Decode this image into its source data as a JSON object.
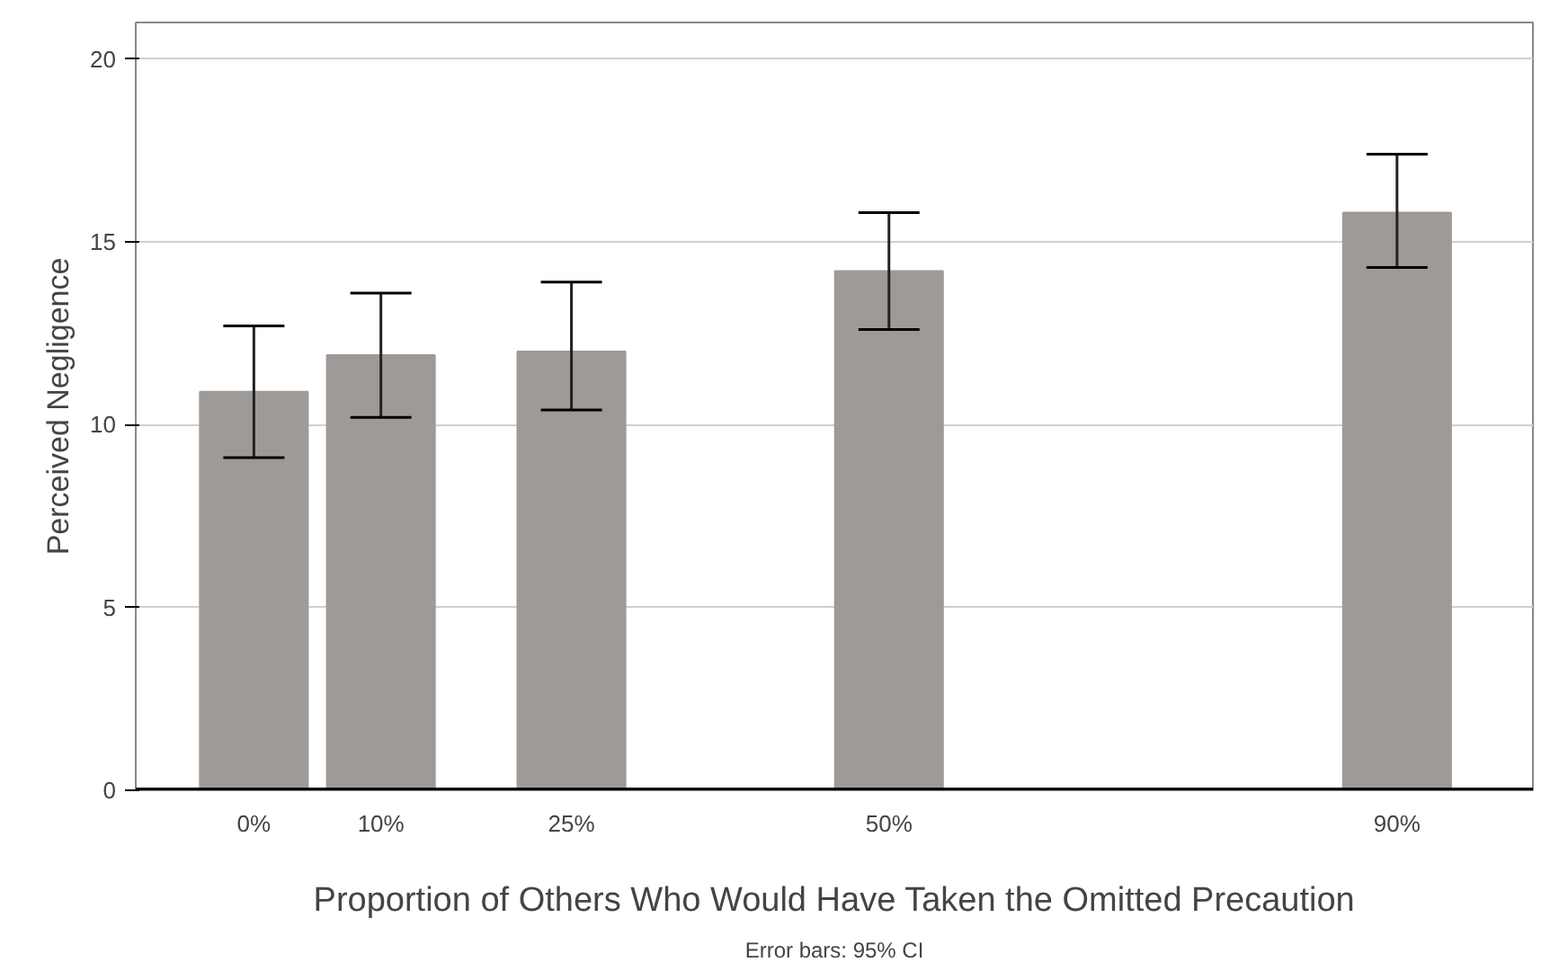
{
  "chart_data": {
    "type": "bar",
    "xlabel": "Proportion of Others Who Would Have Taken the Omitted Precaution",
    "ylabel": "Perceived Negligence",
    "x": [
      0,
      10,
      25,
      50,
      90
    ],
    "values": [
      10.9,
      11.9,
      12.0,
      14.2,
      15.8
    ],
    "color": "#9e9a98",
    "errors": [
      [
        9.1,
        12.7
      ],
      [
        10.2,
        13.6
      ],
      [
        10.4,
        13.9
      ],
      [
        12.6,
        15.8
      ],
      [
        14.3,
        17.4
      ]
    ],
    "xlim": [
      -9.3,
      100.7
    ],
    "ylim": [
      0,
      21
    ],
    "xticks": [
      {
        "value": 0,
        "label": "0%"
      },
      {
        "value": 10,
        "label": "10%"
      },
      {
        "value": 25,
        "label": "25%"
      },
      {
        "value": 50,
        "label": "50%"
      },
      {
        "value": 90,
        "label": "90%"
      }
    ],
    "yticks": [
      0,
      5,
      10,
      15,
      20
    ],
    "grid": "y",
    "annotations": [
      "Error bars: 95% CI"
    ]
  }
}
